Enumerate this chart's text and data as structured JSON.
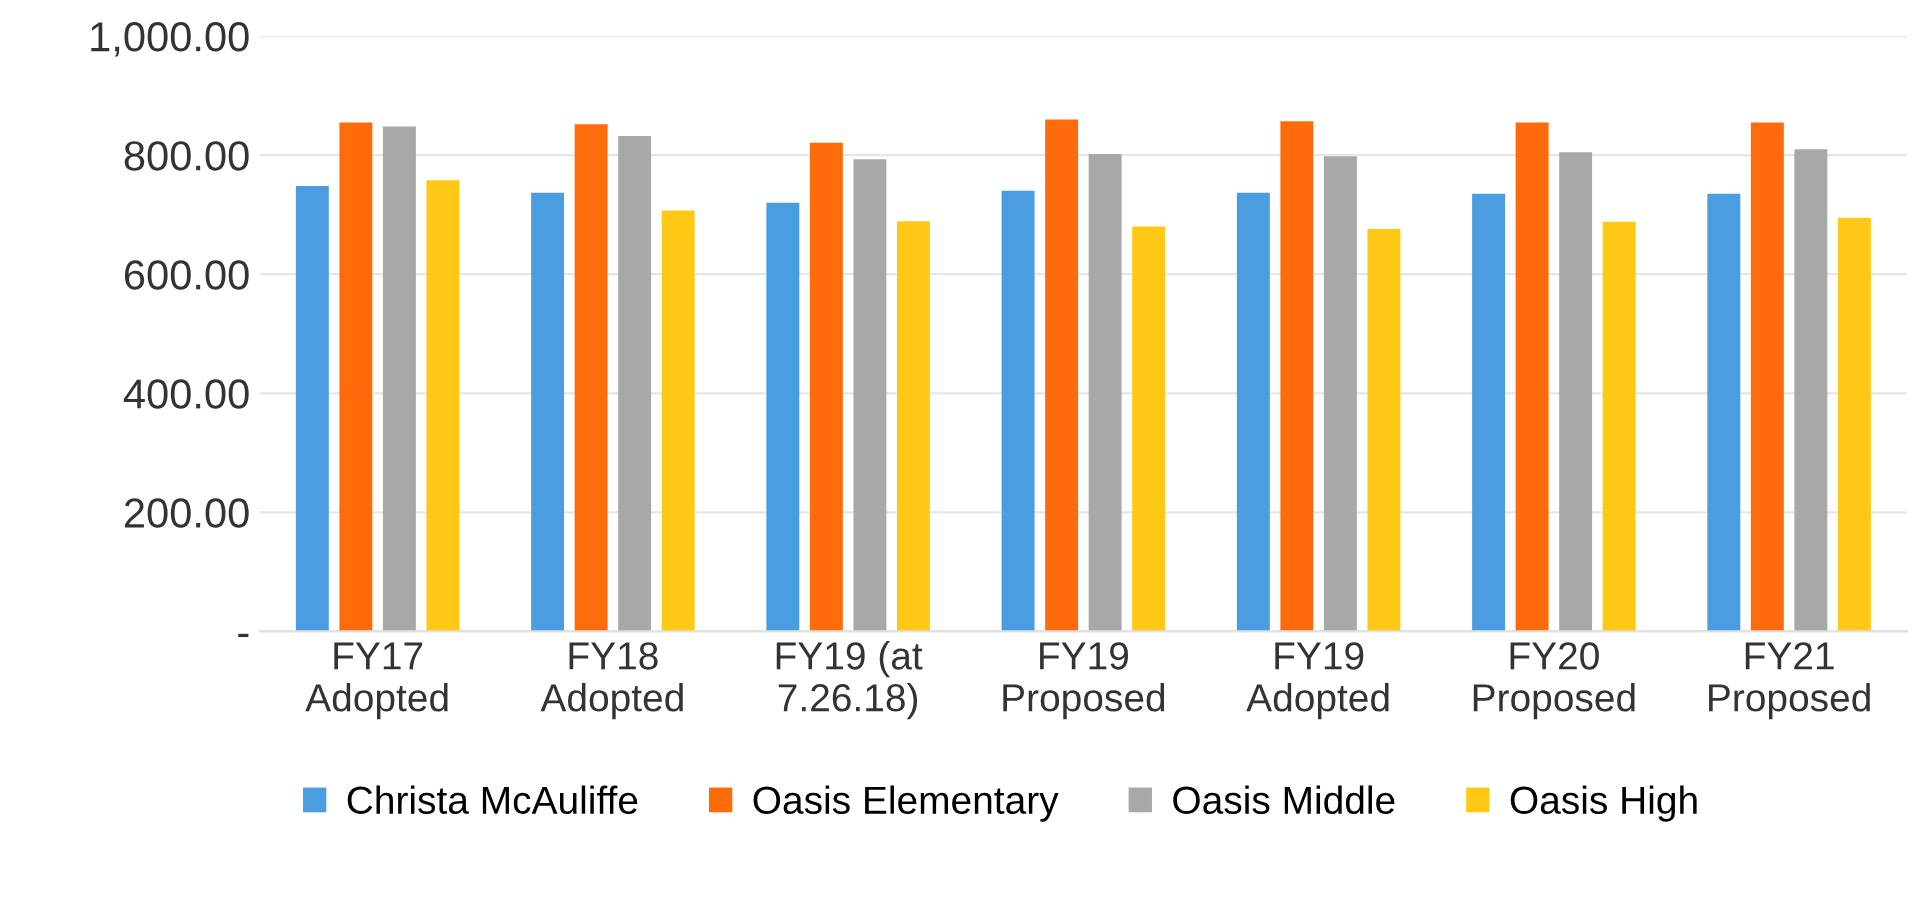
{
  "chart_data": {
    "type": "bar",
    "categories": [
      "FY17\nAdopted",
      "FY18\nAdopted",
      "FY19 (at\n7.26.18)",
      "FY19\nProposed",
      "FY19\nAdopted",
      "FY20\nProposed",
      "FY21\nProposed"
    ],
    "series": [
      {
        "name": "Christa McAuliffe",
        "color": "#4a9de0",
        "values": [
          748,
          737,
          720,
          740,
          737,
          735,
          735
        ]
      },
      {
        "name": "Oasis Elementary",
        "color": "#ff6a0a",
        "values": [
          855,
          852,
          821,
          860,
          857,
          855,
          855
        ]
      },
      {
        "name": "Oasis Middle",
        "color": "#a8a8a8",
        "values": [
          848,
          832,
          793,
          802,
          798,
          805,
          810
        ]
      },
      {
        "name": "Oasis High",
        "color": "#ffc815",
        "values": [
          758,
          707,
          689,
          680,
          676,
          688,
          695
        ]
      }
    ],
    "ylim": [
      0,
      1000
    ],
    "yticks": [
      {
        "value": 0,
        "label": "-"
      },
      {
        "value": 200,
        "label": "200.00"
      },
      {
        "value": 400,
        "label": "400.00"
      },
      {
        "value": 600,
        "label": "600.00"
      },
      {
        "value": 800,
        "label": "800.00"
      },
      {
        "value": 1000,
        "label": "1,000.00"
      }
    ],
    "grid": "y",
    "legend": "bottom"
  }
}
